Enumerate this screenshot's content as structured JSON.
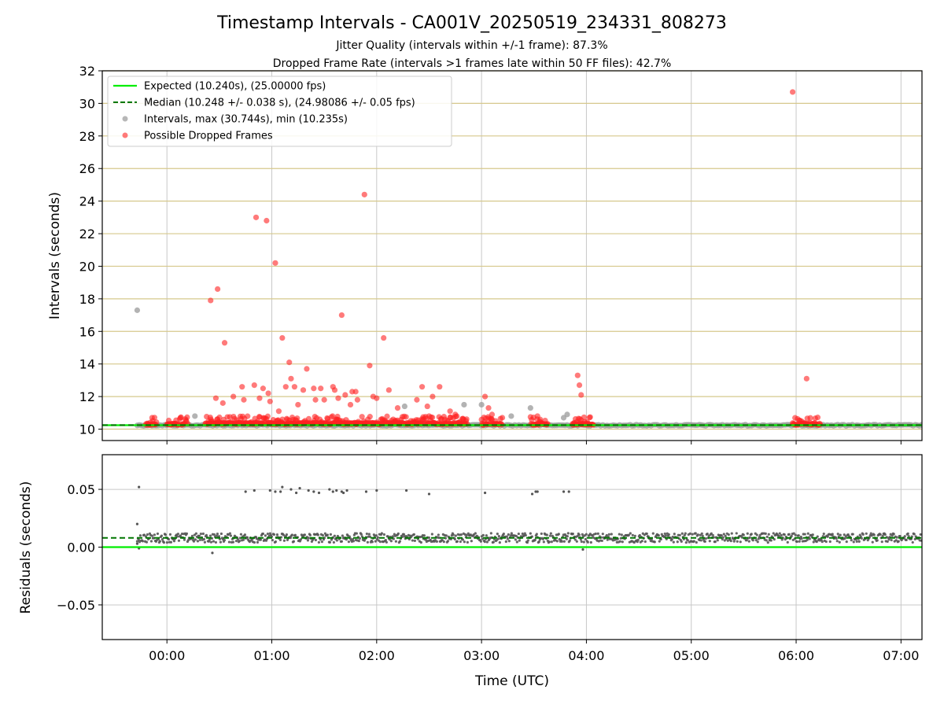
{
  "figure": {
    "title": "Timestamp Intervals - CA001V_20250519_234331_808273",
    "subtitle_1": "Jitter Quality (intervals within +/-1 frame): 87.3%",
    "subtitle_2": "Dropped Frame Rate (intervals >1 frames late within 50 FF files): 42.7%"
  },
  "colors": {
    "expected": "#00ee00",
    "median": "#007700",
    "intervals": "#999999",
    "dropped": "#ff2222",
    "residuals": "#555555",
    "hgrid_top": "#d6c88c",
    "grid": "#c8c8c8"
  },
  "chart_data": [
    {
      "type": "scatter",
      "panel": "intervals",
      "xlabel": "",
      "ylabel": "Intervals (seconds)",
      "ylim": [
        9.3,
        32
      ],
      "xlim": [
        "-00:37",
        "07:12"
      ],
      "yticks": [
        "10",
        "12",
        "14",
        "16",
        "18",
        "20",
        "22",
        "24",
        "26",
        "28",
        "30",
        "32"
      ],
      "grid": true,
      "legend_position": "top-left",
      "legend": [
        "Expected (10.240s), (25.00000 fps)",
        "Median (10.248 +/- 0.038 s), (24.98086 +/- 0.05 fps)",
        "Intervals, max (30.744s), min (10.235s)",
        "Possible Dropped Frames"
      ],
      "expected_interval_s": 10.24,
      "median_interval_s": 10.248,
      "intervals_band": {
        "start": "-00:17",
        "end": "07:12",
        "value_s": 10.24
      },
      "dropped_dense_segments": [
        {
          "start": "-00:12",
          "end": "-00:06",
          "value_s": 10.25
        },
        {
          "start": "00:00",
          "end": "00:12",
          "value_s": 10.25
        },
        {
          "start": "00:22",
          "end": "02:52",
          "value_s": 10.3
        },
        {
          "start": "03:00",
          "end": "03:12",
          "value_s": 10.25
        },
        {
          "start": "03:28",
          "end": "03:38",
          "value_s": 10.25
        },
        {
          "start": "03:52",
          "end": "04:04",
          "value_s": 10.25
        },
        {
          "start": "05:58",
          "end": "06:14",
          "value_s": 10.25
        }
      ],
      "series": [
        {
          "name": "Intervals, max (30.744s), min (10.235s)",
          "x": [
            "-00:17",
            "00:16",
            "02:16",
            "02:50",
            "03:00",
            "03:17",
            "03:28",
            "03:47",
            "03:49"
          ],
          "y": [
            17.3,
            10.8,
            11.4,
            11.5,
            11.5,
            10.8,
            11.3,
            10.7,
            10.9
          ]
        },
        {
          "name": "Possible Dropped Frames",
          "x": [
            "00:25",
            "00:28",
            "00:29",
            "00:32",
            "00:33",
            "00:38",
            "00:43",
            "00:44",
            "00:50",
            "00:51",
            "00:53",
            "00:55",
            "00:57",
            "00:58",
            "00:59",
            "01:02",
            "01:04",
            "01:06",
            "01:08",
            "01:10",
            "01:11",
            "01:13",
            "01:15",
            "01:18",
            "01:20",
            "01:24",
            "01:25",
            "01:28",
            "01:30",
            "01:35",
            "01:36",
            "01:38",
            "01:40",
            "01:42",
            "01:45",
            "01:46",
            "01:48",
            "01:49",
            "01:53",
            "01:55",
            "01:56",
            "01:58",
            "02:00",
            "02:04",
            "02:07",
            "02:12",
            "02:21",
            "02:23",
            "02:26",
            "02:29",
            "02:30",
            "02:32",
            "02:36",
            "02:39",
            "02:42",
            "02:45",
            "03:02",
            "03:04",
            "03:06",
            "03:08",
            "03:32",
            "03:34",
            "03:55",
            "03:56",
            "03:57",
            "05:58",
            "06:06"
          ],
          "y": [
            17.9,
            11.9,
            18.6,
            11.6,
            15.3,
            12.0,
            12.6,
            11.8,
            12.7,
            23.0,
            11.9,
            12.5,
            22.8,
            12.2,
            11.7,
            20.2,
            11.1,
            15.6,
            12.6,
            14.1,
            13.1,
            12.6,
            11.5,
            12.4,
            13.7,
            12.5,
            11.8,
            12.5,
            11.8,
            12.6,
            12.4,
            11.9,
            17.0,
            12.1,
            11.5,
            12.3,
            12.3,
            11.8,
            24.4,
            10.6,
            13.9,
            12.0,
            11.9,
            15.6,
            12.4,
            11.3,
            10.5,
            11.8,
            12.6,
            11.4,
            10.8,
            12.0,
            12.6,
            10.6,
            11.1,
            10.9,
            12.0,
            11.3,
            10.9,
            10.5,
            10.8,
            10.4,
            13.3,
            12.7,
            12.1,
            30.7,
            13.1
          ]
        }
      ]
    },
    {
      "type": "scatter",
      "panel": "residuals",
      "xlabel": "Time (UTC)",
      "ylabel": "Residuals (seconds)",
      "ylim": [
        -0.08,
        0.08
      ],
      "xlim": [
        "-00:37",
        "07:12"
      ],
      "yticks": [
        "−0.05",
        "0.00",
        "0.05"
      ],
      "xticks": [
        "00:00",
        "01:00",
        "02:00",
        "03:00",
        "04:00",
        "05:00",
        "06:00",
        "07:00"
      ],
      "grid": true,
      "expected_residual_s": 0.0,
      "median_residual_s": 0.008,
      "residual_band": {
        "start": "-00:17",
        "end": "07:12",
        "center_s": 0.008,
        "spread_s": 0.004
      },
      "outliers": {
        "x": [
          "-00:17",
          "-00:17",
          "-00:16",
          "-00:16",
          "00:26",
          "00:45",
          "00:50",
          "00:59",
          "01:02",
          "01:05",
          "01:06",
          "01:11",
          "01:14",
          "01:16",
          "01:21",
          "01:24",
          "01:27",
          "01:33",
          "01:35",
          "01:37",
          "01:40",
          "01:41",
          "01:43",
          "01:54",
          "02:00",
          "02:17",
          "02:30",
          "03:02",
          "03:29",
          "03:31",
          "03:32",
          "03:47",
          "03:50",
          "03:58"
        ],
        "y": [
          0.02,
          0.003,
          -0.001,
          0.052,
          -0.005,
          0.048,
          0.049,
          0.049,
          0.048,
          0.048,
          0.052,
          0.05,
          0.047,
          0.051,
          0.049,
          0.048,
          0.047,
          0.05,
          0.048,
          0.049,
          0.048,
          0.047,
          0.049,
          0.048,
          0.049,
          0.049,
          0.046,
          0.047,
          0.046,
          0.048,
          0.048,
          0.048,
          0.048,
          -0.002
        ]
      }
    }
  ]
}
